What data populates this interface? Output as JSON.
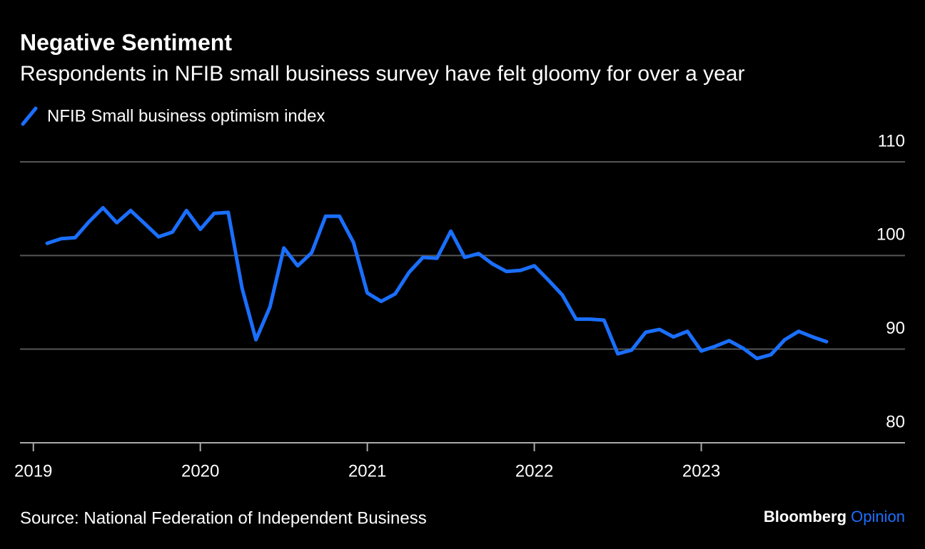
{
  "chart_data": {
    "type": "line",
    "title": "Negative Sentiment",
    "subtitle": "Respondents in NFIB small business survey have felt gloomy for over a year",
    "source": "Source: National Federation of Independent Business",
    "brand": "Bloomberg",
    "brand_section": "Opinion",
    "x": [
      2019.083,
      2019.167,
      2019.25,
      2019.333,
      2019.417,
      2019.5,
      2019.583,
      2019.667,
      2019.75,
      2019.833,
      2019.917,
      2020,
      2020.083,
      2020.167,
      2020.25,
      2020.333,
      2020.417,
      2020.5,
      2020.583,
      2020.667,
      2020.75,
      2020.833,
      2020.917,
      2021,
      2021.083,
      2021.167,
      2021.25,
      2021.333,
      2021.417,
      2021.5,
      2021.583,
      2021.667,
      2021.75,
      2021.833,
      2021.917,
      2022,
      2022.083,
      2022.167,
      2022.25,
      2022.333,
      2022.417,
      2022.5,
      2022.583,
      2022.667,
      2022.75,
      2022.833,
      2022.917,
      2023,
      2023.083,
      2023.167,
      2023.25,
      2023.333,
      2023.417,
      2023.5,
      2023.583,
      2023.667,
      2023.75
    ],
    "series": [
      {
        "name": "NFIB Small business optimism index",
        "color": "#1a6fff",
        "values": [
          101.3,
          101.8,
          101.9,
          103.6,
          105.1,
          103.5,
          104.8,
          103.4,
          102.0,
          102.5,
          104.8,
          102.8,
          104.5,
          104.6,
          96.5,
          91.0,
          94.5,
          100.8,
          98.9,
          100.3,
          104.2,
          104.2,
          101.4,
          96.0,
          95.1,
          95.9,
          98.2,
          99.8,
          99.7,
          102.6,
          99.8,
          100.2,
          99.1,
          98.3,
          98.4,
          98.9,
          97.4,
          95.8,
          93.2,
          93.2,
          93.1,
          89.5,
          89.9,
          91.8,
          92.1,
          91.3,
          91.9,
          89.8,
          90.3,
          90.9,
          90.1,
          89.0,
          89.4,
          91.0,
          91.9,
          91.3,
          90.8
        ]
      }
    ],
    "xlim": [
      2018.92,
      2024.22
    ],
    "xticks": [
      2019,
      2020,
      2021,
      2022,
      2023
    ],
    "ylim": [
      80,
      110
    ],
    "yticks": [
      80,
      90,
      100,
      110
    ],
    "grid": true
  }
}
